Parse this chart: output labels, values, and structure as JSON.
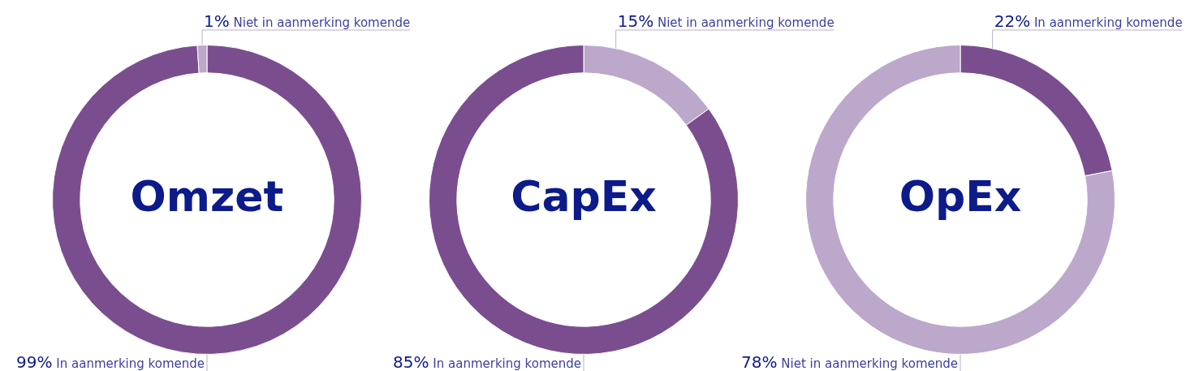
{
  "chart_data": [
    {
      "type": "donut",
      "title": "Omzet",
      "categories": [
        "In aanmerking komende",
        "Niet in aanmerking komende"
      ],
      "values": [
        99,
        1
      ],
      "colors": [
        "#7a4e8e",
        "#bba8ca"
      ],
      "value_labels": [
        "99%",
        "1%"
      ]
    },
    {
      "type": "donut",
      "title": "CapEx",
      "categories": [
        "Niet in aanmerking komende",
        "In aanmerking komende"
      ],
      "values": [
        15,
        85
      ],
      "colors": [
        "#bba8ca",
        "#7a4e8e"
      ],
      "value_labels": [
        "15%",
        "85%"
      ]
    },
    {
      "type": "donut",
      "title": "OpEx",
      "categories": [
        "In aanmerking komende",
        "Niet in aanmerking komende"
      ],
      "values": [
        22,
        78
      ],
      "colors": [
        "#7a4e8e",
        "#bba8ca"
      ],
      "value_labels": [
        "22%",
        "78%"
      ]
    }
  ]
}
